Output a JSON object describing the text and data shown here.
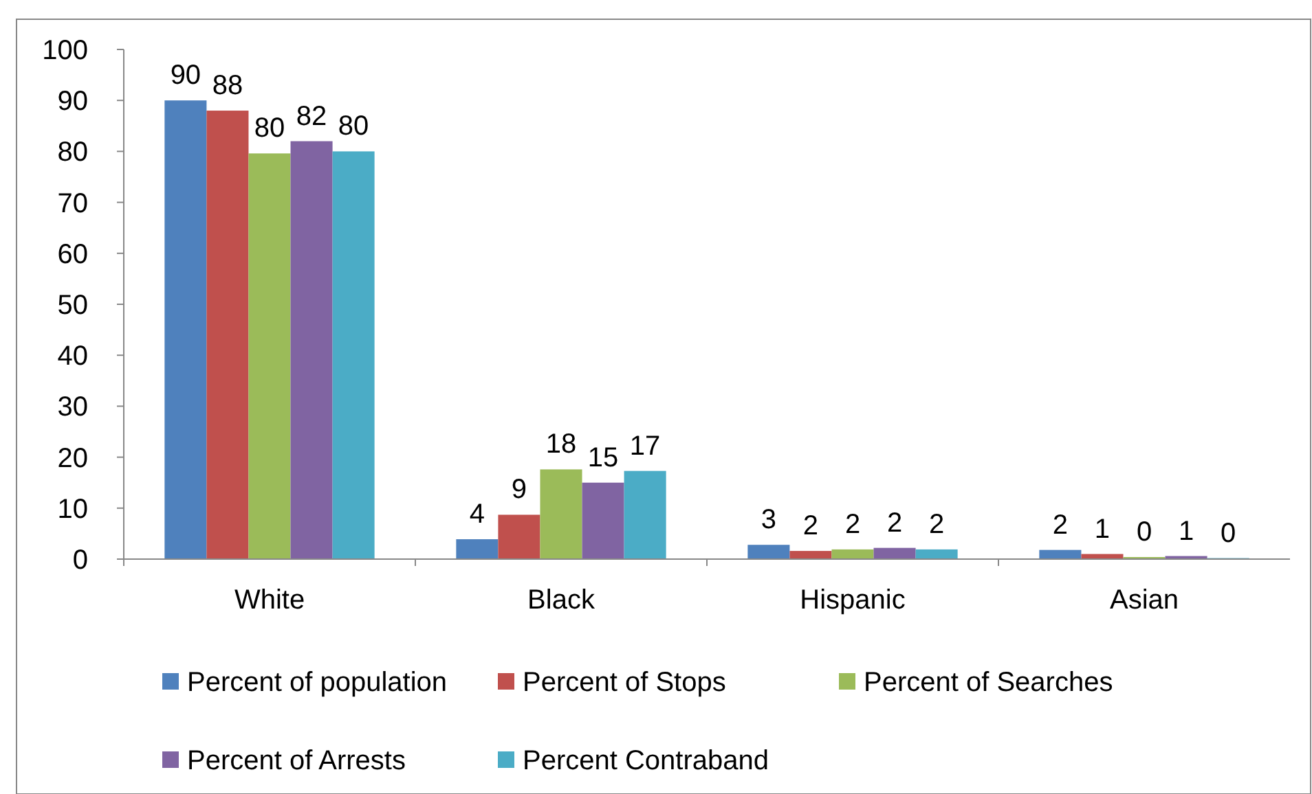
{
  "chart_data": {
    "type": "bar",
    "categories": [
      "White",
      "Black",
      "Hispanic",
      "Asian"
    ],
    "series": [
      {
        "name": "Percent of population",
        "color": "#4f81bd",
        "values": [
          90,
          3.9,
          2.8,
          1.8
        ],
        "value_labels": [
          "90",
          "4",
          "3",
          "2"
        ]
      },
      {
        "name": "Percent of Stops",
        "color": "#c0504d",
        "values": [
          88,
          8.7,
          1.6,
          1.0
        ],
        "value_labels": [
          "88",
          "9",
          "2",
          "1"
        ]
      },
      {
        "name": "Percent of Searches",
        "color": "#9bbb59",
        "values": [
          79.6,
          17.6,
          1.9,
          0.4
        ],
        "value_labels": [
          "80",
          "18",
          "2",
          "0"
        ]
      },
      {
        "name": "Percent of Arrests",
        "color": "#8064a2",
        "values": [
          82,
          15,
          2.2,
          0.6
        ],
        "value_labels": [
          "82",
          "15",
          "2",
          "1"
        ]
      },
      {
        "name": "Percent Contraband",
        "color": "#4bacc6",
        "values": [
          80,
          17.3,
          1.9,
          0.2
        ],
        "value_labels": [
          "80",
          "17",
          "2",
          "0"
        ]
      }
    ],
    "ylim": [
      0,
      100
    ],
    "yticks": [
      0,
      10,
      20,
      30,
      40,
      50,
      60,
      70,
      80,
      90,
      100
    ],
    "grid": false,
    "legend": "bottom"
  }
}
